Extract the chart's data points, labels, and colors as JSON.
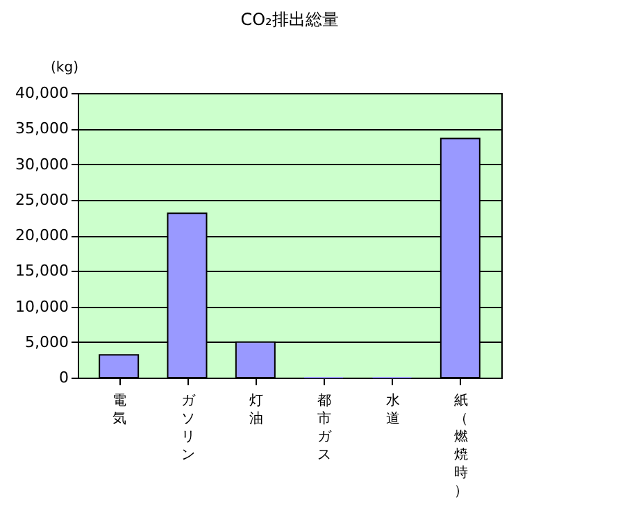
{
  "chart_data": {
    "type": "bar",
    "title": "CO₂排出総量",
    "ylabel": "(kg)",
    "categories": [
      "電気",
      "ガソリン",
      "灯油",
      "都市ガス",
      "水道",
      "紙（燃焼時）"
    ],
    "values": [
      3200,
      23100,
      5000,
      0,
      0,
      33600
    ],
    "color": "#9999ff",
    "ylim": [
      0,
      40000
    ],
    "yticks": [
      {
        "value": 0,
        "label": "0"
      },
      {
        "value": 5000,
        "label": "5,000"
      },
      {
        "value": 10000,
        "label": "10,000"
      },
      {
        "value": 15000,
        "label": "15,000"
      },
      {
        "value": 20000,
        "label": "20,000"
      },
      {
        "value": 25000,
        "label": "25,000"
      },
      {
        "value": 30000,
        "label": "30,000"
      },
      {
        "value": 35000,
        "label": "35,000"
      },
      {
        "value": 40000,
        "label": "40,000"
      }
    ],
    "grid": "y"
  }
}
